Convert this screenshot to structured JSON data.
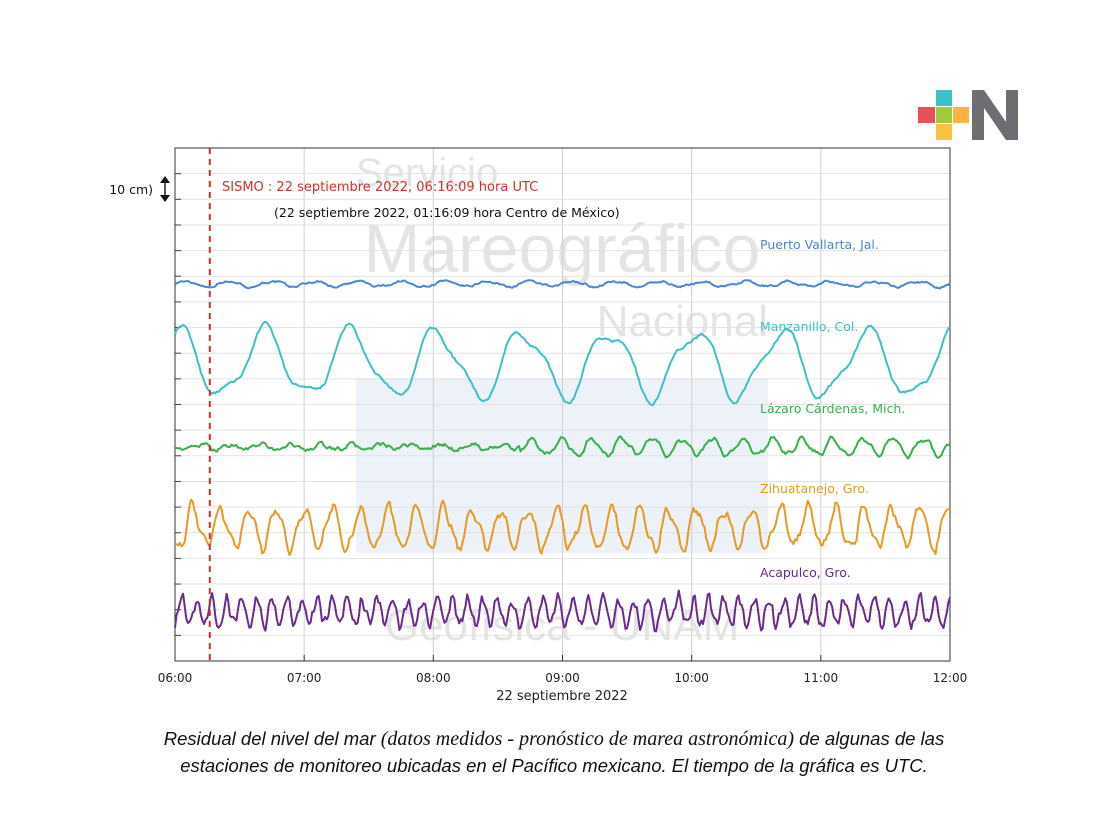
{
  "logo": {
    "name": "logo-icon",
    "colors": [
      "#e8505b",
      "#3ac1c8",
      "#ffb347",
      "#9ccc3a",
      "#f6c342",
      "#6d6e71"
    ]
  },
  "chart_data": {
    "type": "line",
    "title": "",
    "xlabel": "22 septiembre 2022",
    "ylabel": "",
    "x_ticks": [
      "06:00",
      "07:00",
      "08:00",
      "09:00",
      "10:00",
      "11:00",
      "12:00"
    ],
    "xlim": [
      "06:00",
      "12:00"
    ],
    "scale_bar": {
      "label": "10 cm)",
      "value_cm": 10
    },
    "grid": true,
    "event": {
      "time": "06:16:09",
      "label": "SISMO : 22 septiembre 2022, 06:16:09 hora UTC",
      "sublabel": "(22 septiembre 2022, 01:16:09 hora Centro de México)",
      "color": "#d0302a"
    },
    "watermark": [
      "Servicio",
      "Mareográfico",
      "Nacional",
      "Geofísica - UNAM"
    ],
    "series": [
      {
        "name": "Puerto Vallarta, Jal.",
        "color": "#4a86d8",
        "period_min": 20,
        "amplitude_cm": 0.8,
        "noise_cm": 0.6,
        "onset": "06:00"
      },
      {
        "name": "Manzanillo, Col.",
        "color": "#3fbfc6",
        "period_min": 40,
        "amplitude_cm": 10,
        "noise_cm": 0.9,
        "onset": "06:00"
      },
      {
        "name": "Lázaro Cárdenas, Mich.",
        "color": "#36b04a",
        "period_min": 14,
        "amplitude_cm": 2.5,
        "noise_cm": 1.2,
        "onset": "08:40"
      },
      {
        "name": "Zihuatanejo, Gro.",
        "color": "#e59a23",
        "period_min": 13,
        "amplitude_cm": 6,
        "noise_cm": 2.5,
        "onset": "06:00"
      },
      {
        "name": "Acapulco, Gro.",
        "color": "#6a2a8e",
        "period_min": 7,
        "amplitude_cm": 4,
        "noise_cm": 3.0,
        "onset": "06:00"
      }
    ]
  },
  "caption": {
    "line1_a": "Residual del nivel del mar ",
    "line1_b": "(datos medidos - pronóstico de marea astronómica)",
    "line1_c": " de algunas de las",
    "line2": "estaciones de monitoreo ubicadas en el Pacífico mexicano. El tiempo de la gráfica es UTC."
  }
}
